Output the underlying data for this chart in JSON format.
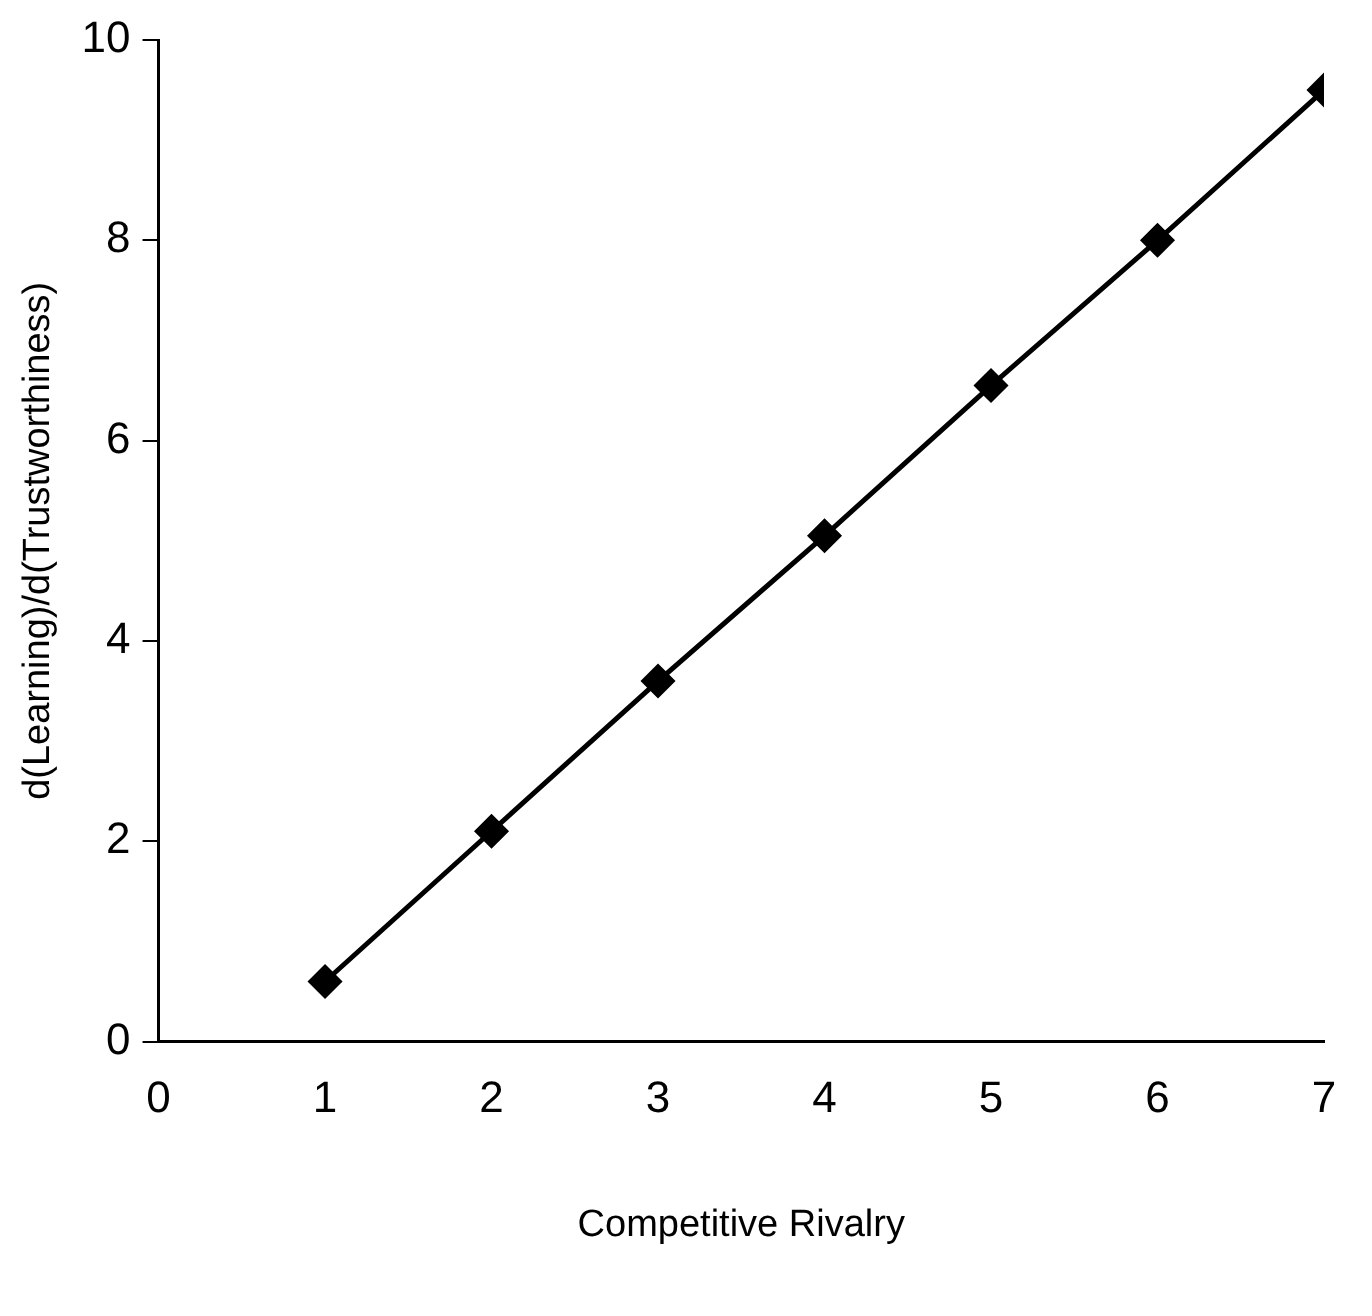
{
  "chart_data": {
    "type": "line",
    "xlabel": "Competitive Rivalry",
    "ylabel": "d(Learning)/d(Trustworthiness)",
    "x": [
      1,
      2,
      3,
      4,
      5,
      6,
      7
    ],
    "series": [
      {
        "color": "#000000",
        "values": [
          0.6,
          2.1,
          3.6,
          5.05,
          6.55,
          8.0,
          9.5
        ]
      }
    ],
    "xlim": [
      0,
      7
    ],
    "xticks": [
      0,
      1,
      2,
      3,
      4,
      5,
      6,
      7
    ],
    "ylim": [
      0,
      10
    ],
    "yticks": [
      0,
      2,
      4,
      6,
      8,
      10
    ],
    "grid": false,
    "legend": false,
    "marker": "diamond",
    "line_style": "solid"
  }
}
